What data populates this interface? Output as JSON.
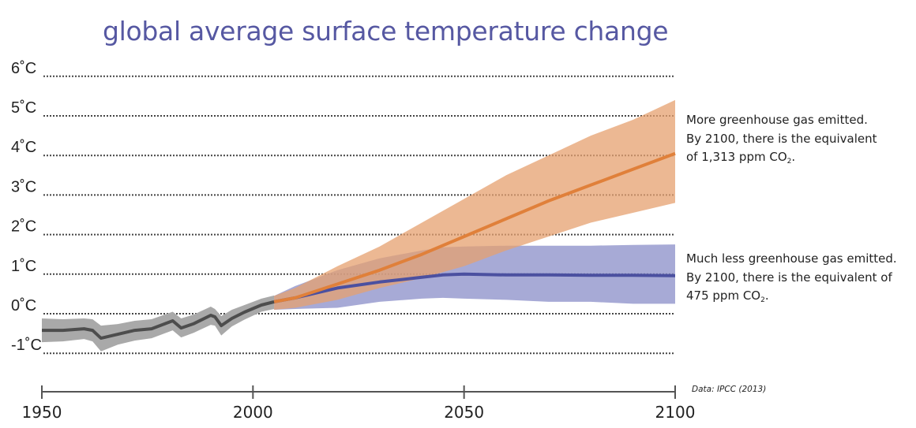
{
  "chart_data": {
    "type": "area",
    "title": "global average surface temperature change",
    "xlabel": "",
    "ylabel": "",
    "xlim": [
      1950,
      2100
    ],
    "ylim": [
      -1,
      6
    ],
    "grid": true,
    "x_ticks": [
      "1950",
      "2000",
      "2050",
      "2100"
    ],
    "x_tick_values": [
      1950,
      2000,
      2050,
      2100
    ],
    "y_ticks": [
      "6˚C",
      "5˚C",
      "4˚C",
      "3˚C",
      "2˚C",
      "1˚C",
      "0˚C",
      "-1˚C"
    ],
    "y_tick_values": [
      6,
      5,
      4,
      3,
      2,
      1,
      0,
      -1
    ],
    "series": [
      {
        "key": "historical",
        "color": "#4d4d4d",
        "band_color": "#a9a9a9",
        "x": [
          1950,
          1955,
          1960,
          1962,
          1964,
          1968,
          1972,
          1976,
          1981,
          1983,
          1986,
          1990,
          1991,
          1992.5,
          1995,
          1998,
          2002,
          2005
        ],
        "values": [
          -0.42,
          -0.42,
          -0.38,
          -0.42,
          -0.62,
          -0.52,
          -0.42,
          -0.38,
          -0.18,
          -0.36,
          -0.25,
          -0.04,
          -0.08,
          -0.3,
          -0.12,
          0.04,
          0.22,
          0.3
        ],
        "lower": [
          -0.72,
          -0.7,
          -0.64,
          -0.7,
          -0.95,
          -0.78,
          -0.68,
          -0.62,
          -0.42,
          -0.6,
          -0.48,
          -0.28,
          -0.3,
          -0.55,
          -0.32,
          -0.15,
          0.05,
          0.12
        ],
        "upper": [
          -0.12,
          -0.14,
          -0.12,
          -0.14,
          -0.3,
          -0.26,
          -0.18,
          -0.14,
          0.05,
          -0.12,
          -0.02,
          0.18,
          0.12,
          -0.06,
          0.1,
          0.22,
          0.38,
          0.46
        ]
      },
      {
        "key": "high-emissions",
        "color": "#e0803a",
        "band_color": "#e5a06f",
        "x": [
          2005,
          2010,
          2020,
          2030,
          2040,
          2050,
          2060,
          2070,
          2080,
          2090,
          2100
        ],
        "values": [
          0.3,
          0.4,
          0.75,
          1.1,
          1.5,
          1.95,
          2.4,
          2.85,
          3.25,
          3.65,
          4.05
        ],
        "lower": [
          0.1,
          0.15,
          0.35,
          0.65,
          0.9,
          1.2,
          1.6,
          1.95,
          2.3,
          2.55,
          2.8
        ],
        "upper": [
          0.45,
          0.65,
          1.2,
          1.7,
          2.3,
          2.9,
          3.5,
          4.0,
          4.5,
          4.9,
          5.4
        ]
      },
      {
        "key": "low-emissions",
        "color": "#4b50a0",
        "band_color": "#8a8ec8",
        "x": [
          2005,
          2010,
          2020,
          2030,
          2040,
          2045,
          2050,
          2060,
          2070,
          2080,
          2090,
          2100
        ],
        "values": [
          0.3,
          0.4,
          0.65,
          0.8,
          0.92,
          0.98,
          1.0,
          0.98,
          0.98,
          0.97,
          0.97,
          0.96
        ],
        "lower": [
          0.1,
          0.12,
          0.15,
          0.3,
          0.38,
          0.4,
          0.38,
          0.35,
          0.3,
          0.3,
          0.25,
          0.25
        ],
        "upper": [
          0.45,
          0.7,
          1.1,
          1.4,
          1.6,
          1.68,
          1.7,
          1.72,
          1.72,
          1.72,
          1.74,
          1.75
        ]
      }
    ],
    "annotations": {
      "high": {
        "lines": [
          "More greenhouse gas emitted.",
          "By 2100, there is the equivalent"
        ],
        "last_prefix": "of 1,313 ppm CO",
        "sub": "2",
        "suffix": "."
      },
      "low": {
        "lines": [
          "Much less greenhouse gas emitted.",
          "By 2100, there is the equivalent of"
        ],
        "last_prefix": "475 ppm CO",
        "sub": "2",
        "suffix": "."
      }
    },
    "source": "Data: IPCC (2013)"
  }
}
